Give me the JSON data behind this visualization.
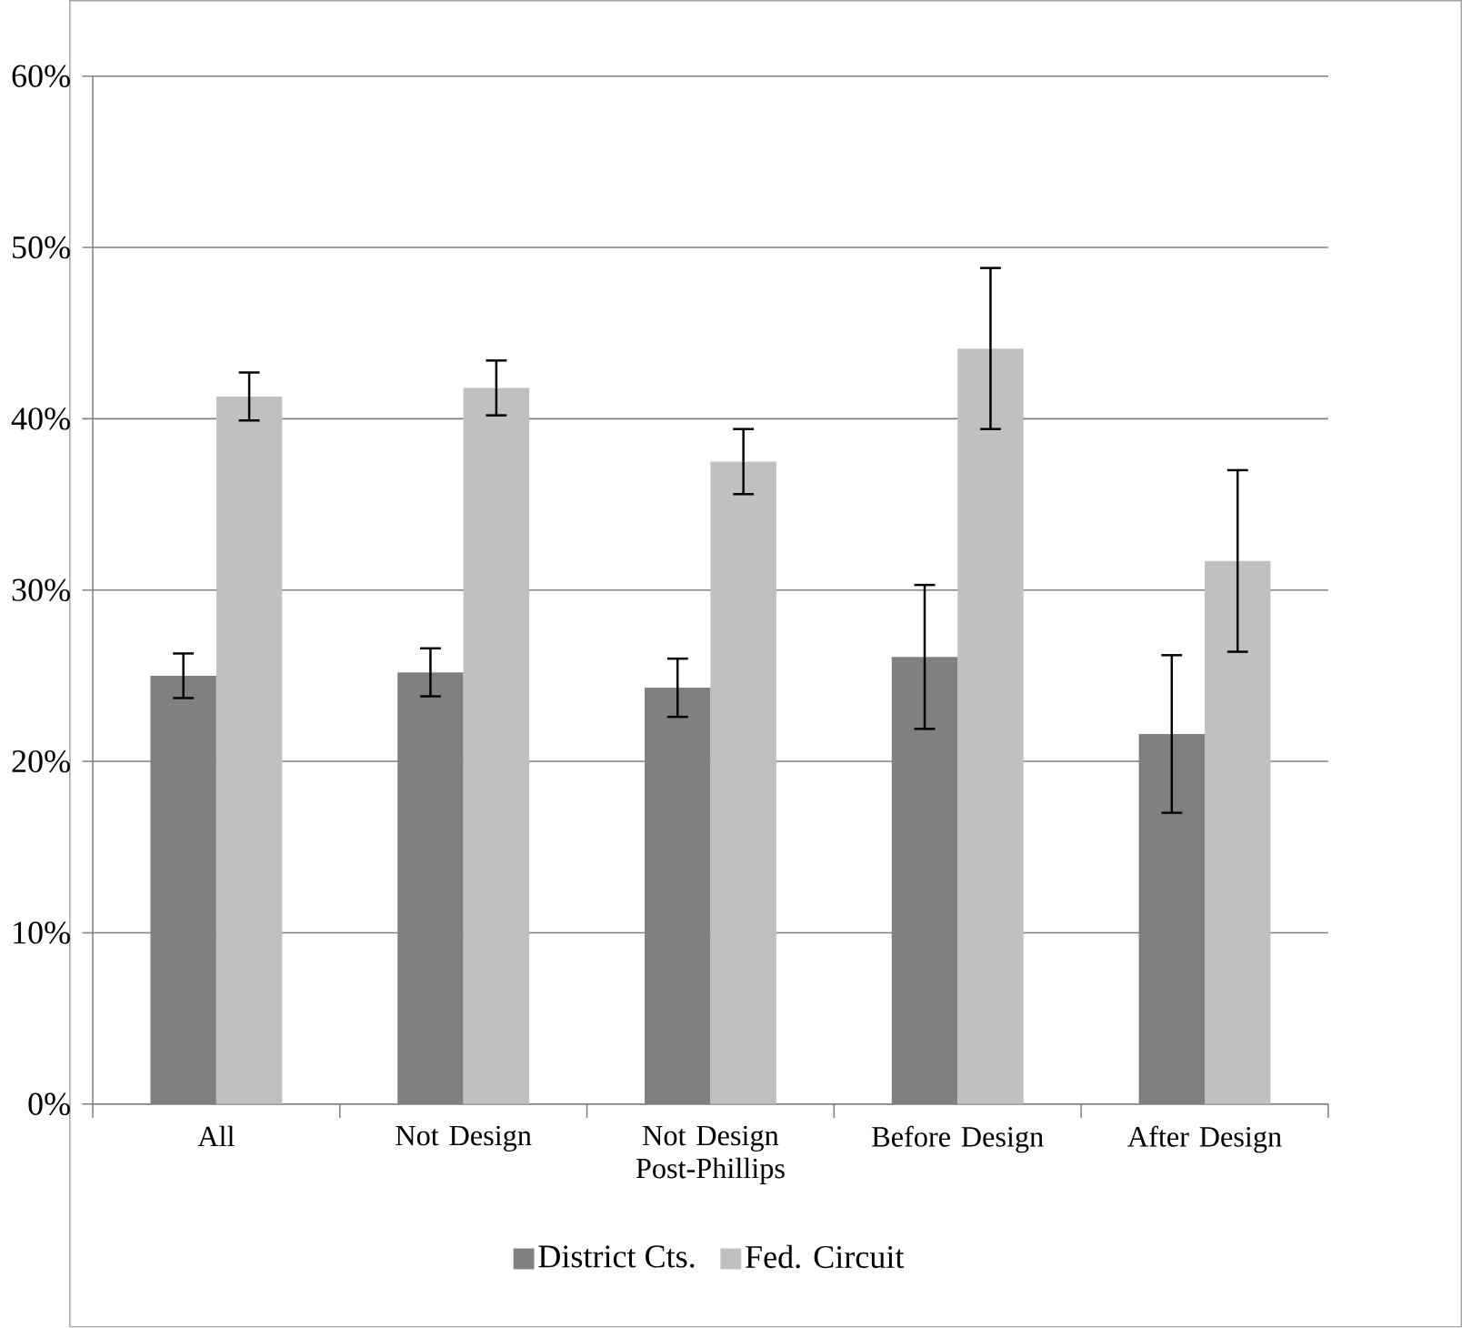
{
  "chart_data": {
    "type": "bar",
    "categories": [
      "All",
      "Not Design",
      "Not Design Post-Phillips",
      "Before Design",
      "After Design"
    ],
    "series": [
      {
        "name": "District Cts.",
        "color": "#808080",
        "values": [
          25.0,
          25.2,
          24.3,
          26.1,
          21.6
        ],
        "errors": [
          1.3,
          1.4,
          1.7,
          4.2,
          4.6
        ]
      },
      {
        "name": "Fed. Circuit",
        "color": "#c0c0c0",
        "values": [
          41.3,
          41.8,
          37.5,
          44.1,
          31.7
        ],
        "errors": [
          1.4,
          1.6,
          1.9,
          4.7,
          5.3
        ]
      }
    ],
    "ylim": [
      0,
      60
    ],
    "yticks": [
      {
        "value": 0,
        "label": "0%"
      },
      {
        "value": 10,
        "label": "10%"
      },
      {
        "value": 20,
        "label": "20%"
      },
      {
        "value": 30,
        "label": "30%"
      },
      {
        "value": 40,
        "label": "40%"
      },
      {
        "value": 50,
        "label": "50%"
      },
      {
        "value": 60,
        "label": "60%"
      }
    ],
    "grid": "y",
    "legend": "bottom"
  }
}
